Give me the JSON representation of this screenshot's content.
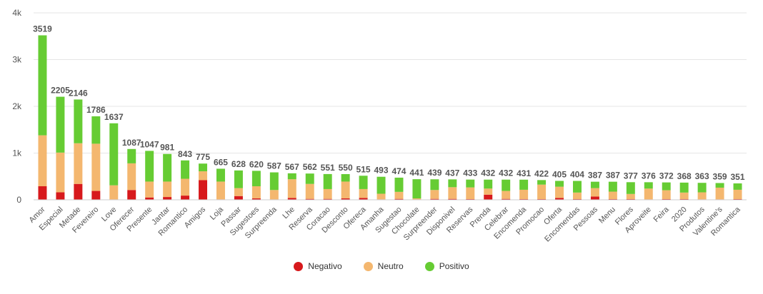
{
  "chart_data": {
    "type": "bar",
    "stacked": true,
    "categories": [
      "Amor",
      "Especial",
      "Metade",
      "Fevereiro",
      "Love",
      "Oferecer",
      "Presente",
      "Jantar",
      "Romantico",
      "Amigos",
      "Loja",
      "Passar",
      "Sugestoes",
      "Surpreenda",
      "Lhe",
      "Reserva",
      "Coracao",
      "Desconto",
      "Ofereca",
      "Amanha",
      "Sugestao",
      "Chocolate",
      "Surpreender",
      "Disponivel",
      "Reservas",
      "Prenda",
      "Celebrar",
      "Encomenda",
      "Promocao",
      "Oferta",
      "Encomendas",
      "Pessoas",
      "Menu",
      "Flores",
      "Aproveite",
      "Feira",
      "2020",
      "Produtos",
      "Valentine's",
      "Romantica"
    ],
    "totals": [
      3519,
      2205,
      2146,
      1786,
      1637,
      1087,
      1047,
      981,
      843,
      775,
      665,
      628,
      620,
      587,
      567,
      562,
      551,
      550,
      515,
      493,
      474,
      441,
      439,
      437,
      433,
      432,
      432,
      431,
      422,
      405,
      404,
      387,
      387,
      377,
      376,
      372,
      368,
      363,
      359,
      351
    ],
    "series": [
      {
        "name": "Negativo",
        "color": "#d7191c",
        "values": [
          290,
          160,
          340,
          190,
          10,
          210,
          50,
          60,
          90,
          420,
          10,
          80,
          30,
          10,
          40,
          20,
          20,
          30,
          40,
          10,
          20,
          10,
          20,
          20,
          15,
          110,
          20,
          15,
          15,
          40,
          15,
          70,
          15,
          15,
          10,
          15,
          15,
          10,
          10,
          15
        ]
      },
      {
        "name": "Neutro",
        "color": "#f4b76f",
        "values": [
          1090,
          850,
          870,
          1010,
          300,
          570,
          340,
          330,
          360,
          190,
          380,
          170,
          260,
          200,
          400,
          320,
          210,
          360,
          190,
          120,
          150,
          20,
          190,
          250,
          250,
          130,
          170,
          200,
          310,
          240,
          140,
          180,
          160,
          110,
          230,
          190,
          140,
          150,
          250,
          200
        ]
      },
      {
        "name": "Positivo",
        "color": "#66cc33",
        "values": [
          2139,
          1195,
          936,
          586,
          1327,
          307,
          657,
          591,
          393,
          165,
          275,
          378,
          330,
          377,
          127,
          222,
          321,
          160,
          285,
          363,
          304,
          411,
          229,
          167,
          168,
          192,
          242,
          216,
          97,
          125,
          249,
          137,
          212,
          252,
          136,
          167,
          213,
          203,
          99,
          136
        ]
      }
    ],
    "y_ticks": [
      "0",
      "1k",
      "2k",
      "3k",
      "4k"
    ],
    "y_tick_values": [
      0,
      1000,
      2000,
      3000,
      4000
    ],
    "ylim": [
      0,
      4000
    ],
    "grid": true,
    "legend_position": "bottom-center",
    "title": "",
    "xlabel": "",
    "ylabel": ""
  }
}
